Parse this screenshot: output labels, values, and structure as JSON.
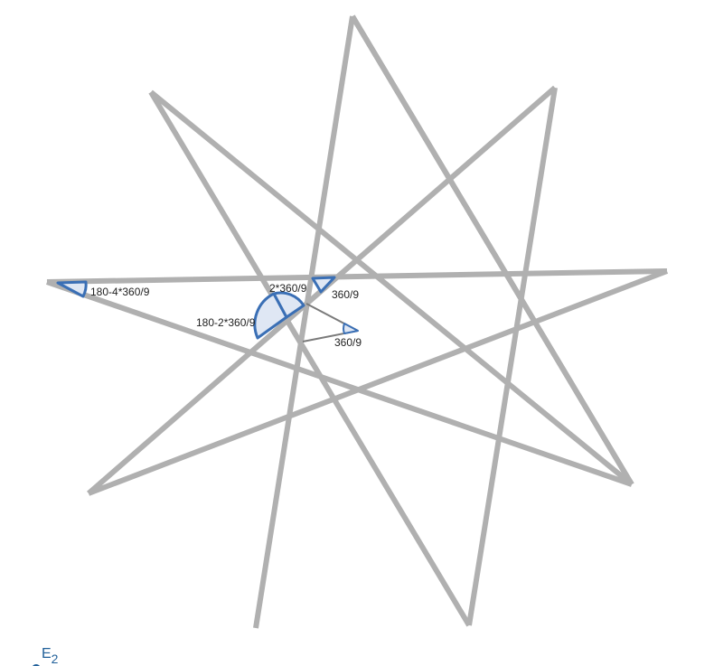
{
  "colors": {
    "star_stroke": "#b0b0b0",
    "angle_stroke": "#3a6fb5",
    "angle_fill": "#dfe7f4",
    "helper_stroke": "#7a7a7a",
    "point_label": "#1f5f99"
  },
  "angle_labels": {
    "outer_tip": "180-4*360/9",
    "double": "2*360/9",
    "inner_top": "360/9",
    "supplement": "180-2*360/9",
    "center": "360/9"
  },
  "point_label": {
    "letter": "E",
    "subscript": "2"
  }
}
